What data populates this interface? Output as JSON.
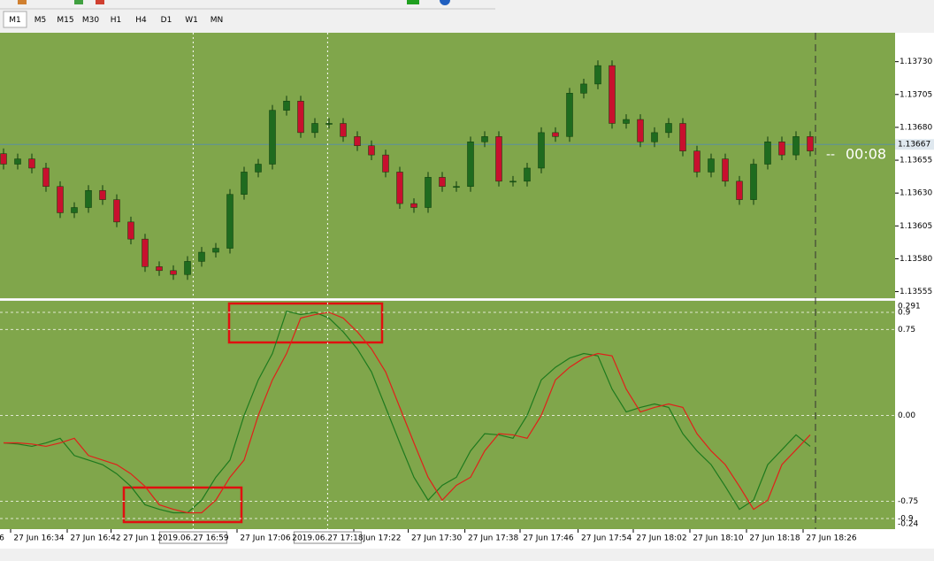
{
  "toolbar": {
    "timeframes": [
      "M1",
      "M5",
      "M15",
      "M30",
      "H1",
      "H4",
      "D1",
      "W1",
      "MN"
    ]
  },
  "chart_data": [
    {
      "type": "candlestick",
      "open": [
        1.1366,
        1.13652,
        1.13656,
        1.13649,
        1.13635,
        1.13615,
        1.13619,
        1.13632,
        1.13625,
        1.13608,
        1.13595,
        1.13574,
        1.13571,
        1.13568,
        1.13578,
        1.13585,
        1.13588,
        1.13629,
        1.13646,
        1.13652,
        1.13693,
        1.137,
        1.13676,
        1.13683,
        1.13683,
        1.13673,
        1.13666,
        1.13659,
        1.13646,
        1.13622,
        1.13619,
        1.13642,
        1.13635,
        1.13635,
        1.13669,
        1.13673,
        1.13639,
        1.13639,
        1.13649,
        1.13676,
        1.13673,
        1.13706,
        1.13713,
        1.13727,
        1.13683,
        1.13686,
        1.13669,
        1.13676,
        1.13683,
        1.13662,
        1.13646,
        1.13656,
        1.13639,
        1.13625,
        1.13652,
        1.13669,
        1.13659,
        1.13673
      ],
      "high": [
        1.13664,
        1.1366,
        1.1366,
        1.13653,
        1.13639,
        1.13623,
        1.13636,
        1.13636,
        1.13629,
        1.13612,
        1.13599,
        1.13578,
        1.13575,
        1.13582,
        1.13589,
        1.13592,
        1.13633,
        1.1365,
        1.13656,
        1.13697,
        1.13704,
        1.13704,
        1.13687,
        1.13687,
        1.13687,
        1.13677,
        1.1367,
        1.13663,
        1.1365,
        1.13626,
        1.13646,
        1.13646,
        1.13639,
        1.13673,
        1.13677,
        1.13677,
        1.13643,
        1.13653,
        1.1368,
        1.1368,
        1.1371,
        1.13717,
        1.13731,
        1.13731,
        1.1369,
        1.1369,
        1.1368,
        1.13687,
        1.13687,
        1.13666,
        1.1366,
        1.1366,
        1.13643,
        1.13656,
        1.13673,
        1.13673,
        1.13677,
        1.13677
      ],
      "low": [
        1.13648,
        1.13648,
        1.13645,
        1.13631,
        1.13611,
        1.13611,
        1.13615,
        1.13621,
        1.13604,
        1.13591,
        1.1357,
        1.13567,
        1.13564,
        1.13564,
        1.13574,
        1.13581,
        1.13584,
        1.13625,
        1.13642,
        1.13648,
        1.13689,
        1.13672,
        1.13672,
        1.13679,
        1.13669,
        1.13662,
        1.13655,
        1.13642,
        1.13618,
        1.13615,
        1.13615,
        1.13631,
        1.13631,
        1.13631,
        1.13665,
        1.13635,
        1.13635,
        1.13635,
        1.13645,
        1.13669,
        1.13669,
        1.13702,
        1.13709,
        1.13679,
        1.13679,
        1.13665,
        1.13665,
        1.13672,
        1.13658,
        1.13642,
        1.13642,
        1.13635,
        1.13621,
        1.13621,
        1.13648,
        1.13655,
        1.13655,
        1.13658
      ],
      "close": [
        1.13652,
        1.13656,
        1.13649,
        1.13635,
        1.13615,
        1.13619,
        1.13632,
        1.13625,
        1.13608,
        1.13595,
        1.13574,
        1.13571,
        1.13568,
        1.13578,
        1.13585,
        1.13588,
        1.13629,
        1.13646,
        1.13652,
        1.13693,
        1.137,
        1.13676,
        1.13683,
        1.13683,
        1.13673,
        1.13666,
        1.13659,
        1.13646,
        1.13622,
        1.13619,
        1.13642,
        1.13635,
        1.13635,
        1.13669,
        1.13673,
        1.13639,
        1.13639,
        1.13649,
        1.13676,
        1.13673,
        1.13706,
        1.13713,
        1.13727,
        1.13683,
        1.13686,
        1.13669,
        1.13676,
        1.13683,
        1.13662,
        1.13646,
        1.13656,
        1.13639,
        1.13625,
        1.13652,
        1.13669,
        1.13659,
        1.13673,
        1.13662
      ],
      "up_color": "#1f6b1f",
      "down_color": "#c8102e",
      "ylim": [
        1.1355,
        1.13752
      ],
      "yticks": [
        {
          "value": 1.1373,
          "label": "1.13730"
        },
        {
          "value": 1.13705,
          "label": "1.13705"
        },
        {
          "value": 1.1368,
          "label": "1.13680"
        },
        {
          "value": 1.13655,
          "label": "1.13655"
        },
        {
          "value": 1.1363,
          "label": "1.13630"
        },
        {
          "value": 1.13605,
          "label": "1.13605"
        },
        {
          "value": 1.1358,
          "label": "1.13580"
        },
        {
          "value": 1.13555,
          "label": "1.13555"
        }
      ],
      "current_price": {
        "value": 1.13667,
        "label": "1.13667"
      },
      "timer": "00:08",
      "timer_prefix": "--"
    },
    {
      "type": "line",
      "series": [
        {
          "color": "#1e7a1e",
          "values": [
            -0.24,
            -0.25,
            -0.27,
            -0.24,
            -0.2,
            -0.35,
            -0.39,
            -0.43,
            -0.51,
            -0.62,
            -0.78,
            -0.82,
            -0.85,
            -0.85,
            -0.74,
            -0.54,
            -0.39,
            0.0,
            0.31,
            0.54,
            0.91,
            0.88,
            0.9,
            0.85,
            0.73,
            0.58,
            0.38,
            0.07,
            -0.24,
            -0.54,
            -0.74,
            -0.61,
            -0.54,
            -0.31,
            -0.16,
            -0.17,
            -0.2,
            0.0,
            0.31,
            0.42,
            0.5,
            0.54,
            0.52,
            0.23,
            0.03,
            0.07,
            0.1,
            0.07,
            -0.16,
            -0.31,
            -0.43,
            -0.62,
            -0.82,
            -0.74,
            -0.43,
            -0.3,
            -0.17,
            -0.27
          ]
        },
        {
          "color": "#e0201a",
          "values": [
            -0.24,
            -0.24,
            -0.25,
            -0.27,
            -0.24,
            -0.2,
            -0.35,
            -0.39,
            -0.43,
            -0.51,
            -0.62,
            -0.78,
            -0.82,
            -0.85,
            -0.85,
            -0.74,
            -0.54,
            -0.39,
            0.0,
            0.31,
            0.54,
            0.85,
            0.88,
            0.9,
            0.85,
            0.73,
            0.58,
            0.38,
            0.07,
            -0.24,
            -0.54,
            -0.74,
            -0.61,
            -0.54,
            -0.31,
            -0.16,
            -0.17,
            -0.2,
            0.0,
            0.31,
            0.42,
            0.5,
            0.54,
            0.52,
            0.23,
            0.03,
            0.07,
            0.1,
            0.07,
            -0.16,
            -0.31,
            -0.43,
            -0.62,
            -0.82,
            -0.74,
            -0.43,
            -0.3,
            -0.17
          ]
        }
      ],
      "ylim": [
        -0.993,
        1.0
      ],
      "yticks": [
        0.9,
        0.75,
        {
          "value": 0,
          "label": "0.00"
        },
        -0.75,
        -0.9
      ],
      "range_labels": [
        "0.291",
        "-0.24"
      ],
      "xlim": [
        -0.25,
        62.75
      ],
      "xticks": [
        {
          "value": -0.125,
          "label": "6"
        },
        {
          "value": 2.5,
          "label": "27 Jun 16:34"
        },
        {
          "value": 6.5,
          "label": "27 Jun 16:42"
        },
        {
          "value": 9.6,
          "label": "27 Jun 1"
        },
        {
          "value": 18.5,
          "label": "27 Jun 17:06"
        },
        {
          "value": 26.75,
          "label": "Jun 17:22"
        },
        {
          "value": 30.6,
          "label": "27 Jun 17:30"
        },
        {
          "value": 34.6,
          "label": "27 Jun 17:38"
        },
        {
          "value": 38.5,
          "label": "27 Jun 17:46"
        },
        {
          "value": 42.6,
          "label": "27 Jun 17:54"
        },
        {
          "value": 46.5,
          "label": "27 Jun 18:02"
        },
        {
          "value": 50.5,
          "label": "27 Jun 18:10"
        },
        {
          "value": 54.5,
          "label": "27 Jun 18:18"
        },
        {
          "value": 58.5,
          "label": "27 Jun 18:26"
        }
      ],
      "crosshairs": [
        {
          "value": 13.4,
          "label": "2019.06.27 16:59"
        },
        {
          "value": 22.9,
          "label": "2019.06.27 17:18"
        }
      ]
    }
  ]
}
